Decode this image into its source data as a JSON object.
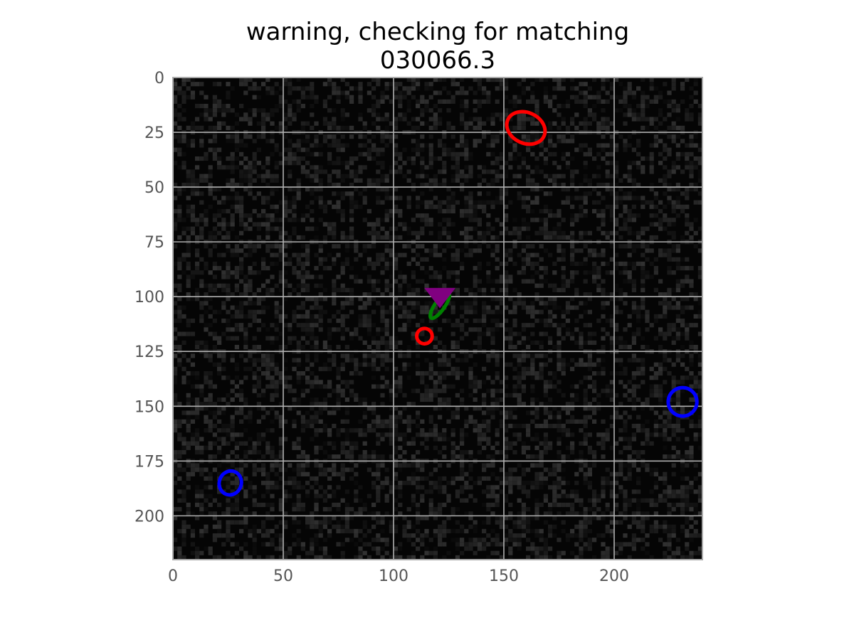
{
  "chart_data": {
    "type": "scatter",
    "title_lines": [
      "warning, checking for matching",
      "030066.3"
    ],
    "background": "noisy dark grayscale image",
    "grid": true,
    "xlim": [
      0,
      240
    ],
    "ylim": [
      220,
      0
    ],
    "x_ticks": [
      0,
      50,
      100,
      150,
      200
    ],
    "y_ticks": [
      0,
      25,
      50,
      75,
      100,
      125,
      150,
      175,
      200
    ],
    "colors": {
      "grid": "#b0b0b0",
      "frame": "#aaaaaa",
      "red": "#ff0000",
      "blue": "#0000ff",
      "green": "#008000",
      "purple": "#800080"
    },
    "ellipses": [
      {
        "color": "red",
        "cx": 160,
        "cy": 23,
        "rx": 9,
        "ry": 7,
        "angle": 25
      },
      {
        "color": "red",
        "cx": 114,
        "cy": 118,
        "rx": 3.5,
        "ry": 3.5,
        "angle": 0
      },
      {
        "color": "green",
        "cx": 121,
        "cy": 104,
        "rx": 2.2,
        "ry": 7,
        "angle": 35
      },
      {
        "color": "blue",
        "cx": 231,
        "cy": 148,
        "rx": 6.5,
        "ry": 6.5,
        "angle": 0
      },
      {
        "color": "blue",
        "cx": 26,
        "cy": 185,
        "rx": 5,
        "ry": 5.5,
        "angle": 20
      }
    ],
    "markers": [
      {
        "color": "purple",
        "shape": "triangle-down",
        "x": 121,
        "y": 98
      }
    ]
  }
}
